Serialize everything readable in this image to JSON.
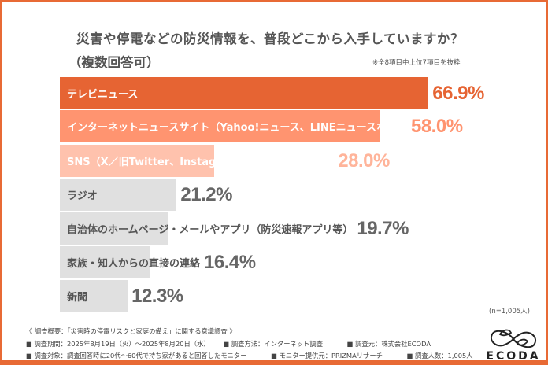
{
  "header": {
    "title": "災害や停電などの防災情報を、普段どこから入手していますか？",
    "subtitle": "（複数回答可）",
    "note": "※全8項目中上位7項目を抜粋"
  },
  "chart_data": {
    "type": "bar",
    "orientation": "horizontal",
    "title": "災害や停電などの防災情報を、普段どこから入手していますか？（複数回答可）",
    "subtitle": "※全8項目中上位7項目を抜粋",
    "categories": [
      "テレビニュース",
      "インターネットニュースサイト（Yahoo!ニュース、LINEニュースなど）",
      "SNS（X／旧Twitter、Instagram、Facebookなど）",
      "ラジオ",
      "自治体のホームページ・メールやアプリ（防災速報アプリ等）",
      "家族・知人からの直接の連絡",
      "新聞"
    ],
    "values": [
      66.9,
      58.0,
      28.0,
      21.2,
      19.7,
      16.4,
      12.3
    ],
    "value_labels": [
      "66.9%",
      "58.0%",
      "28.0%",
      "21.2%",
      "19.7%",
      "16.4%",
      "12.3%"
    ],
    "unit": "%",
    "xlabel": "",
    "ylabel": "",
    "grid": false,
    "sample_size": "(n=1,005人)",
    "bar_colors": [
      "#e66433",
      "#ff9470",
      "#ffc2ad",
      "#e0e0e0",
      "#e0e0e0",
      "#e0e0e0",
      "#e0e0e0"
    ],
    "label_colors": [
      "#ffffff",
      "#ffffff",
      "#ffffff",
      "#555555",
      "#555555",
      "#555555",
      "#555555"
    ],
    "pct_colors": [
      "#e66433",
      "#ff9470",
      "#ffb49a",
      "#666666",
      "#666666",
      "#666666",
      "#666666"
    ]
  },
  "footer": {
    "overview": "《 調査概要：「災害時の停電リスクと家庭の備え」に関する意識調査 》",
    "period": "■ 調査期間：2025年8月19日（火）～2025年8月20日（水）",
    "method": "■ 調査方法：インターネット調査",
    "source": "■ 調査元：株式会社ECODA",
    "target": "■ 調査対象：調査回答時に20代～60代で持ち家があると回答したモニター",
    "provider": "■ モニター提供元：PRIZMAリサーチ",
    "count": "■ 調査人数：1,005人"
  },
  "logo": {
    "text": "ECODA"
  },
  "colors": {
    "accent": "#e86a35"
  }
}
